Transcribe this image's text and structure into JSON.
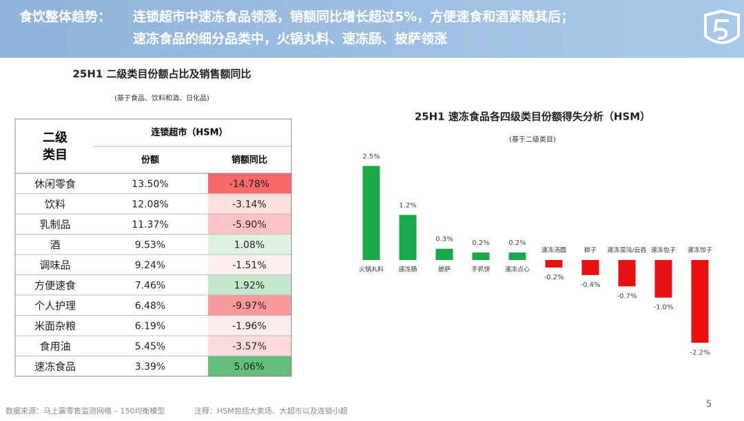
{
  "header": {
    "label": "食饮整体趋势：",
    "lines": [
      "连锁超市中速冻食品领涨，销额同比增长超过5%，方便速食和酒紧随其后；",
      "速冻食品的细分品类中，火锅丸料、速冻肠、披萨领涨"
    ]
  },
  "table": {
    "title": "25H1 二级类目份额占比及销售额同比",
    "subtitle": "(基于食品、饮料和酒、日化品)",
    "corner": [
      "二级",
      "类目"
    ],
    "group": "连锁超市（HSM）",
    "columns": [
      "份额",
      "销额同比"
    ],
    "rows": [
      [
        "休闲零食",
        "13.50%",
        "-14.78%"
      ],
      [
        "饮料",
        "12.08%",
        "-3.14%"
      ],
      [
        "乳制品",
        "11.37%",
        "-5.90%"
      ],
      [
        "酒",
        "9.53%",
        "1.08%"
      ],
      [
        "调味品",
        "9.24%",
        "-1.51%"
      ],
      [
        "方便速食",
        "7.46%",
        "1.92%"
      ],
      [
        "个人护理",
        "6.48%",
        "-9.97%"
      ],
      [
        "米面杂粮",
        "6.19%",
        "-1.96%"
      ],
      [
        "食用油",
        "5.45%",
        "-3.57%"
      ],
      [
        "速冻食品",
        "3.39%",
        "5.06%"
      ]
    ]
  },
  "chart_data": {
    "type": "bar",
    "title": "25H1 速冻食品各四级类目份额得失分析（HSM）",
    "subtitle": "(基于二级类目)",
    "categories": [
      "火锅丸料",
      "速冻肠",
      "披萨",
      "手抓饼",
      "速冻点心",
      "速冻汤圆",
      "粽子",
      "速冻混沌/云吞",
      "速冻包子",
      "速冻饺子"
    ],
    "values": [
      2.5,
      1.2,
      0.3,
      0.2,
      0.2,
      -0.2,
      -0.4,
      -0.7,
      -1.0,
      -2.2
    ],
    "value_labels": [
      "2.5%",
      "1.2%",
      "0.3%",
      "0.2%",
      "0.2%",
      "-0.2%",
      "-0.4%",
      "-0.7%",
      "-1.0%",
      "-2.2%"
    ],
    "positive_color": "#1aa84a",
    "negative_color": "#e81010"
  },
  "footer": {
    "source": "数据来源：马上赢零售监测网络 – 150均衡模型",
    "note": "注释：HSM包括大卖场、大超市以及连锁小超",
    "page": "5"
  }
}
